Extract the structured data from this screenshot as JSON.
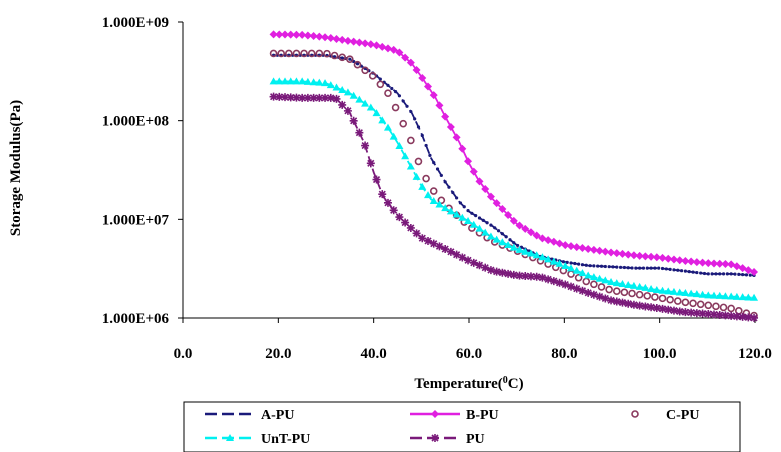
{
  "chart_data": {
    "type": "line",
    "xlabel": "Temperature(",
    "xlabel_sup": "0",
    "xlabel_tail": "C)",
    "ylabel": "Storage Modulus(Pa)",
    "y_scale": "log",
    "xlim": [
      0,
      120
    ],
    "ylim": [
      1000000,
      1000000000
    ],
    "x_ticks": [
      "0.0",
      "20.0",
      "40.0",
      "60.0",
      "80.0",
      "100.0",
      "120.0"
    ],
    "y_ticks": [
      "1.000E+06",
      "1.000E+07",
      "1.000E+08",
      "1.000E+09"
    ],
    "grid": false,
    "legend_position": "bottom",
    "series": [
      {
        "name": "A-PU",
        "color": "#1a1a7a",
        "dash": "dash",
        "marker": "dot",
        "points": [
          [
            19,
            460000000.0
          ],
          [
            25,
            460000000.0
          ],
          [
            30,
            460000000.0
          ],
          [
            35,
            420000000.0
          ],
          [
            40,
            300000000.0
          ],
          [
            45,
            190000000.0
          ],
          [
            48,
            120000000.0
          ],
          [
            50,
            75000000.0
          ],
          [
            52,
            42000000.0
          ],
          [
            55,
            24000000.0
          ],
          [
            58,
            15000000.0
          ],
          [
            60,
            12000000.0
          ],
          [
            65,
            8500000.0
          ],
          [
            70,
            5500000.0
          ],
          [
            75,
            4200000.0
          ],
          [
            80,
            3700000.0
          ],
          [
            85,
            3400000.0
          ],
          [
            90,
            3300000.0
          ],
          [
            95,
            3200000.0
          ],
          [
            100,
            3200000.0
          ],
          [
            105,
            3000000.0
          ],
          [
            110,
            2800000.0
          ],
          [
            115,
            2800000.0
          ],
          [
            120,
            2700000.0
          ]
        ]
      },
      {
        "name": "B-PU",
        "color": "#e020e0",
        "dash": "solid",
        "marker": "diamond",
        "points": [
          [
            19,
            750000000.0
          ],
          [
            25,
            740000000.0
          ],
          [
            30,
            700000000.0
          ],
          [
            35,
            640000000.0
          ],
          [
            40,
            590000000.0
          ],
          [
            45,
            510000000.0
          ],
          [
            48,
            380000000.0
          ],
          [
            50,
            280000000.0
          ],
          [
            53,
            170000000.0
          ],
          [
            55,
            110000000.0
          ],
          [
            58,
            60000000.0
          ],
          [
            60,
            37000000.0
          ],
          [
            62,
            25000000.0
          ],
          [
            65,
            16000000.0
          ],
          [
            70,
            9000000.0
          ],
          [
            75,
            6500000.0
          ],
          [
            80,
            5500000.0
          ],
          [
            85,
            5000000.0
          ],
          [
            90,
            4600000.0
          ],
          [
            95,
            4300000.0
          ],
          [
            100,
            4100000.0
          ],
          [
            105,
            3800000.0
          ],
          [
            110,
            3600000.0
          ],
          [
            115,
            3500000.0
          ],
          [
            120,
            2900000.0
          ]
        ]
      },
      {
        "name": "C-PU",
        "color": "#8a3a5e",
        "dash": "none",
        "marker": "circle",
        "points": [
          [
            19,
            480000000.0
          ],
          [
            25,
            480000000.0
          ],
          [
            30,
            480000000.0
          ],
          [
            35,
            420000000.0
          ],
          [
            40,
            280000000.0
          ],
          [
            43,
            190000000.0
          ],
          [
            45,
            125000000.0
          ],
          [
            48,
            60000000.0
          ],
          [
            50,
            32000000.0
          ],
          [
            52,
            21000000.0
          ],
          [
            55,
            14000000.0
          ],
          [
            60,
            8500000.0
          ],
          [
            65,
            6000000.0
          ],
          [
            70,
            4800000.0
          ],
          [
            75,
            3800000.0
          ],
          [
            80,
            3000000.0
          ],
          [
            85,
            2300000.0
          ],
          [
            90,
            1900000.0
          ],
          [
            95,
            1750000.0
          ],
          [
            100,
            1600000.0
          ],
          [
            105,
            1450000.0
          ],
          [
            110,
            1350000.0
          ],
          [
            115,
            1250000.0
          ],
          [
            120,
            1050000.0
          ]
        ]
      },
      {
        "name": "UnT-PU",
        "color": "#00f0f0",
        "dash": "dash",
        "marker": "triangle",
        "points": [
          [
            19,
            250000000.0
          ],
          [
            25,
            250000000.0
          ],
          [
            30,
            240000000.0
          ],
          [
            35,
            190000000.0
          ],
          [
            40,
            130000000.0
          ],
          [
            43,
            85000000.0
          ],
          [
            45,
            60000000.0
          ],
          [
            48,
            33000000.0
          ],
          [
            50,
            22000000.0
          ],
          [
            52,
            16000000.0
          ],
          [
            55,
            13000000.0
          ],
          [
            60,
            9500000.0
          ],
          [
            65,
            6500000.0
          ],
          [
            70,
            5000000.0
          ],
          [
            75,
            4200000.0
          ],
          [
            80,
            3400000.0
          ],
          [
            85,
            2700000.0
          ],
          [
            90,
            2300000.0
          ],
          [
            95,
            2100000.0
          ],
          [
            100,
            1900000.0
          ],
          [
            105,
            1800000.0
          ],
          [
            110,
            1700000.0
          ],
          [
            115,
            1650000.0
          ],
          [
            120,
            1600000.0
          ]
        ]
      },
      {
        "name": "PU",
        "color": "#7a1a7a",
        "dash": "dash",
        "marker": "star",
        "points": [
          [
            19,
            175000000.0
          ],
          [
            25,
            170000000.0
          ],
          [
            30,
            170000000.0
          ],
          [
            32,
            170000000.0
          ],
          [
            35,
            120000000.0
          ],
          [
            38,
            60000000.0
          ],
          [
            40,
            30000000.0
          ],
          [
            42,
            17000000.0
          ],
          [
            45,
            11000000.0
          ],
          [
            48,
            8000000.0
          ],
          [
            50,
            6500000.0
          ],
          [
            55,
            5000000.0
          ],
          [
            60,
            3800000.0
          ],
          [
            65,
            3000000.0
          ],
          [
            70,
            2700000.0
          ],
          [
            75,
            2600000.0
          ],
          [
            80,
            2200000.0
          ],
          [
            85,
            1800000.0
          ],
          [
            90,
            1500000.0
          ],
          [
            95,
            1350000.0
          ],
          [
            100,
            1250000.0
          ],
          [
            105,
            1150000.0
          ],
          [
            110,
            1100000.0
          ],
          [
            115,
            1050000.0
          ],
          [
            120,
            1000000.0
          ]
        ]
      }
    ]
  }
}
